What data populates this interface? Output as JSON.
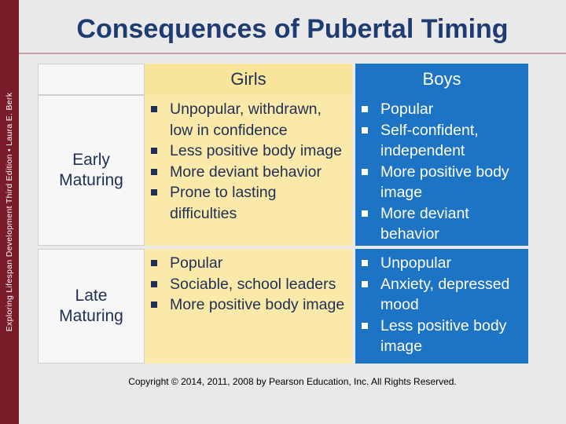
{
  "slide": {
    "sidebar_text": "Exploring Lifespan Development Third Edition • Laura E. Berk",
    "title": "Consequences of Pubertal Timing",
    "footer": "Copyright © 2014, 2011, 2008 by Pearson Education, Inc. All Rights Reserved."
  },
  "table": {
    "headers": {
      "girls": "Girls",
      "boys": "Boys"
    },
    "rows": [
      {
        "label_line1": "Early",
        "label_line2": "Maturing",
        "girls": [
          "Unpopular, withdrawn, low in confidence",
          "Less positive body image",
          "More deviant behavior",
          "Prone to lasting difficulties"
        ],
        "boys": [
          "Popular",
          "Self-confident, independent",
          "More positive body image",
          "More deviant behavior"
        ]
      },
      {
        "label_line1": "Late",
        "label_line2": "Maturing",
        "girls": [
          "Popular",
          "Sociable, school leaders",
          "More positive body image"
        ],
        "boys": [
          "Unpopular",
          "Anxiety, depressed mood",
          "Less positive body image"
        ]
      }
    ]
  },
  "colors": {
    "accent_sidebar": "#7a1b2a",
    "title": "#1f3b73",
    "girls_bg": "#fae9a8",
    "boys_bg": "#1d74c4"
  }
}
